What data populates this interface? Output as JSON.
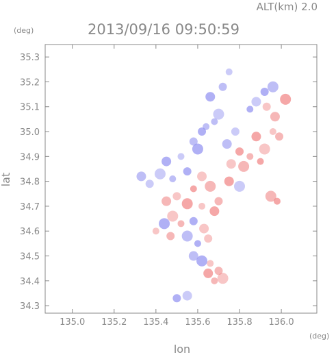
{
  "header": {
    "altitude_label": "ALT(km) 2.0",
    "datetime": "2013/09/16 09:50:59"
  },
  "chart_data": {
    "type": "scatter",
    "title": "",
    "xlabel": "lon",
    "ylabel": "lat",
    "x_unit": "(deg)",
    "y_unit": "(deg)",
    "xlim": [
      134.87,
      136.17
    ],
    "ylim": [
      34.27,
      35.35
    ],
    "x_ticks": [
      "135.0",
      "135.2",
      "135.4",
      "135.6",
      "135.8",
      "136.0"
    ],
    "y_ticks": [
      "34.3",
      "34.4",
      "34.5",
      "34.6",
      "34.7",
      "34.8",
      "34.9",
      "35.0",
      "35.1",
      "35.2",
      "35.3"
    ],
    "grid": false,
    "legend": "none",
    "colors": {
      "positive": "#f08080",
      "negative": "#8c8cf0",
      "axis": "#888888"
    },
    "points": [
      {
        "lon": 135.75,
        "lat": 35.24,
        "sign": "negative"
      },
      {
        "lon": 135.72,
        "lat": 35.18,
        "sign": "negative"
      },
      {
        "lon": 135.66,
        "lat": 35.14,
        "sign": "negative"
      },
      {
        "lon": 135.7,
        "lat": 35.07,
        "sign": "negative"
      },
      {
        "lon": 135.64,
        "lat": 35.02,
        "sign": "negative"
      },
      {
        "lon": 135.92,
        "lat": 35.16,
        "sign": "negative"
      },
      {
        "lon": 135.88,
        "lat": 35.12,
        "sign": "negative"
      },
      {
        "lon": 135.96,
        "lat": 35.18,
        "sign": "negative"
      },
      {
        "lon": 135.85,
        "lat": 35.09,
        "sign": "negative"
      },
      {
        "lon": 135.93,
        "lat": 35.1,
        "sign": "positive"
      },
      {
        "lon": 135.97,
        "lat": 35.06,
        "sign": "positive"
      },
      {
        "lon": 136.02,
        "lat": 35.13,
        "sign": "positive"
      },
      {
        "lon": 135.96,
        "lat": 35.0,
        "sign": "positive"
      },
      {
        "lon": 135.99,
        "lat": 34.98,
        "sign": "positive"
      },
      {
        "lon": 135.88,
        "lat": 34.98,
        "sign": "positive"
      },
      {
        "lon": 135.92,
        "lat": 34.93,
        "sign": "positive"
      },
      {
        "lon": 135.85,
        "lat": 34.9,
        "sign": "positive"
      },
      {
        "lon": 135.8,
        "lat": 34.92,
        "sign": "positive"
      },
      {
        "lon": 135.76,
        "lat": 34.87,
        "sign": "positive"
      },
      {
        "lon": 135.82,
        "lat": 34.86,
        "sign": "positive"
      },
      {
        "lon": 135.9,
        "lat": 34.88,
        "sign": "positive"
      },
      {
        "lon": 135.78,
        "lat": 35.0,
        "sign": "negative"
      },
      {
        "lon": 135.74,
        "lat": 34.95,
        "sign": "negative"
      },
      {
        "lon": 135.6,
        "lat": 34.93,
        "sign": "negative"
      },
      {
        "lon": 135.52,
        "lat": 34.9,
        "sign": "negative"
      },
      {
        "lon": 135.58,
        "lat": 34.96,
        "sign": "negative"
      },
      {
        "lon": 135.45,
        "lat": 34.88,
        "sign": "negative"
      },
      {
        "lon": 135.42,
        "lat": 34.83,
        "sign": "negative"
      },
      {
        "lon": 135.48,
        "lat": 34.81,
        "sign": "negative"
      },
      {
        "lon": 135.55,
        "lat": 34.84,
        "sign": "negative"
      },
      {
        "lon": 135.62,
        "lat": 34.82,
        "sign": "positive"
      },
      {
        "lon": 135.66,
        "lat": 34.78,
        "sign": "positive"
      },
      {
        "lon": 135.58,
        "lat": 34.77,
        "sign": "positive"
      },
      {
        "lon": 135.5,
        "lat": 34.74,
        "sign": "positive"
      },
      {
        "lon": 135.45,
        "lat": 34.72,
        "sign": "positive"
      },
      {
        "lon": 135.55,
        "lat": 34.71,
        "sign": "positive"
      },
      {
        "lon": 135.62,
        "lat": 34.7,
        "sign": "positive"
      },
      {
        "lon": 135.7,
        "lat": 34.72,
        "sign": "positive"
      },
      {
        "lon": 135.68,
        "lat": 34.68,
        "sign": "positive"
      },
      {
        "lon": 135.48,
        "lat": 34.66,
        "sign": "positive"
      },
      {
        "lon": 135.52,
        "lat": 34.63,
        "sign": "positive"
      },
      {
        "lon": 135.58,
        "lat": 34.64,
        "sign": "negative"
      },
      {
        "lon": 135.63,
        "lat": 34.61,
        "sign": "positive"
      },
      {
        "lon": 135.55,
        "lat": 34.58,
        "sign": "negative"
      },
      {
        "lon": 135.6,
        "lat": 34.55,
        "sign": "negative"
      },
      {
        "lon": 135.65,
        "lat": 34.57,
        "sign": "positive"
      },
      {
        "lon": 135.58,
        "lat": 34.5,
        "sign": "negative"
      },
      {
        "lon": 135.62,
        "lat": 34.48,
        "sign": "negative"
      },
      {
        "lon": 135.66,
        "lat": 34.47,
        "sign": "positive"
      },
      {
        "lon": 135.7,
        "lat": 34.44,
        "sign": "positive"
      },
      {
        "lon": 135.65,
        "lat": 34.43,
        "sign": "positive"
      },
      {
        "lon": 135.72,
        "lat": 34.41,
        "sign": "positive"
      },
      {
        "lon": 135.68,
        "lat": 34.4,
        "sign": "positive"
      },
      {
        "lon": 135.5,
        "lat": 34.33,
        "sign": "negative"
      },
      {
        "lon": 135.55,
        "lat": 34.34,
        "sign": "negative"
      },
      {
        "lon": 135.95,
        "lat": 34.74,
        "sign": "positive"
      },
      {
        "lon": 135.98,
        "lat": 34.72,
        "sign": "positive"
      },
      {
        "lon": 135.37,
        "lat": 34.79,
        "sign": "negative"
      },
      {
        "lon": 135.33,
        "lat": 34.82,
        "sign": "negative"
      },
      {
        "lon": 135.44,
        "lat": 34.63,
        "sign": "negative"
      },
      {
        "lon": 135.4,
        "lat": 34.6,
        "sign": "positive"
      },
      {
        "lon": 135.47,
        "lat": 34.58,
        "sign": "positive"
      },
      {
        "lon": 135.75,
        "lat": 34.8,
        "sign": "positive"
      },
      {
        "lon": 135.8,
        "lat": 34.78,
        "sign": "negative"
      },
      {
        "lon": 135.68,
        "lat": 35.04,
        "sign": "negative"
      },
      {
        "lon": 135.62,
        "lat": 35.0,
        "sign": "negative"
      }
    ]
  }
}
